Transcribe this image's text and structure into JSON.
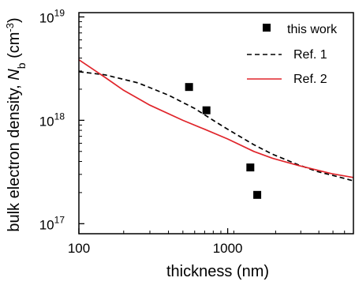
{
  "chart_data": {
    "type": "scatter",
    "xlabel": "thickness (nm)",
    "ylabel_main": "bulk electron density, ",
    "ylabel_symbol": "N",
    "ylabel_subscript": "b",
    "ylabel_unit_open": " (cm",
    "ylabel_unit_exp": "-3",
    "ylabel_unit_close": ")",
    "x_scale": "log",
    "y_scale": "log",
    "xlim": [
      100,
      7000
    ],
    "ylim": [
      8e+16,
      1.1e+19
    ],
    "x_ticks": [
      {
        "value": 100,
        "label": "100"
      },
      {
        "value": 1000,
        "label": "1000"
      }
    ],
    "y_ticks": [
      {
        "value": 1e+17,
        "base": "10",
        "exp": "17"
      },
      {
        "value": 1e+18,
        "base": "10",
        "exp": "18"
      },
      {
        "value": 1e+19,
        "base": "10",
        "exp": "19"
      }
    ],
    "grid": false,
    "legend_position": "top-right",
    "series": [
      {
        "name": "this work",
        "kind": "markers",
        "color": "#000000",
        "points": [
          [
            550,
            2.1e+18
          ],
          [
            720,
            1.25e+18
          ],
          [
            1420,
            3.5e+17
          ],
          [
            1580,
            1.9e+17
          ]
        ]
      },
      {
        "name": "Ref. 1",
        "kind": "dashed-line",
        "color": "#000000",
        "points": [
          [
            100,
            2.95e+18
          ],
          [
            150,
            2.75e+18
          ],
          [
            250,
            2.3e+18
          ],
          [
            400,
            1.75e+18
          ],
          [
            600,
            1.3e+18
          ],
          [
            800,
            1e+18
          ],
          [
            1000,
            8.2e+17
          ],
          [
            1500,
            5.8e+17
          ],
          [
            2000,
            4.7e+17
          ],
          [
            3000,
            3.7e+17
          ],
          [
            4000,
            3.2e+17
          ],
          [
            5000,
            2.95e+17
          ],
          [
            7000,
            2.6e+17
          ]
        ]
      },
      {
        "name": "Ref. 2",
        "kind": "line",
        "color": "#e0252b",
        "points": [
          [
            100,
            3.85e+18
          ],
          [
            150,
            2.6e+18
          ],
          [
            200,
            1.95e+18
          ],
          [
            300,
            1.4e+18
          ],
          [
            500,
            1e+18
          ],
          [
            700,
            8.2e+17
          ],
          [
            1000,
            6.6e+17
          ],
          [
            1500,
            5e+17
          ],
          [
            2000,
            4.3e+17
          ],
          [
            3000,
            3.65e+17
          ],
          [
            5000,
            3.05e+17
          ],
          [
            7000,
            2.8e+17
          ]
        ]
      }
    ]
  }
}
